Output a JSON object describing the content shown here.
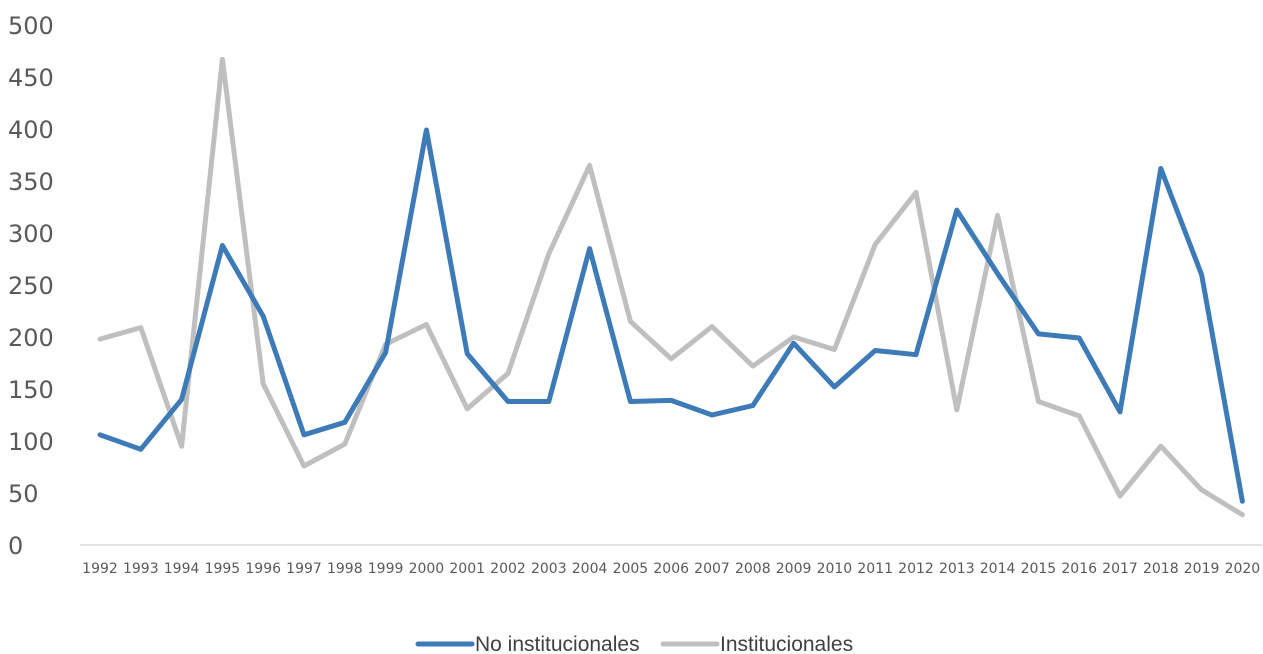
{
  "chart_data": {
    "type": "line",
    "title": "",
    "xlabel": "",
    "ylabel": "",
    "categories": [
      "1992",
      "1993",
      "1994",
      "1995",
      "1996",
      "1997",
      "1998",
      "1999",
      "2000",
      "2001",
      "2002",
      "2003",
      "2004",
      "2005",
      "2006",
      "2007",
      "2008",
      "2009",
      "2010",
      "2011",
      "2012",
      "2013",
      "2014",
      "2015",
      "2016",
      "2017",
      "2018",
      "2019",
      "2020"
    ],
    "y_ticks": [
      "0",
      "50",
      "100",
      "150",
      "200",
      "250",
      "300",
      "350",
      "400",
      "450",
      "500"
    ],
    "ylim": [
      0,
      500
    ],
    "grid": false,
    "legend_position": "bottom",
    "series": [
      {
        "name": "No institucionales",
        "color": "#3d7ab8",
        "values": [
          106,
          92,
          140,
          288,
          220,
          106,
          118,
          185,
          399,
          184,
          138,
          138,
          285,
          138,
          139,
          125,
          134,
          194,
          152,
          187,
          183,
          322,
          261,
          203,
          199,
          128,
          362,
          260,
          42
        ]
      },
      {
        "name": "Institucionales",
        "color": "#bfbfbf",
        "values": [
          198,
          209,
          95,
          467,
          155,
          76,
          97,
          193,
          212,
          131,
          165,
          280,
          365,
          215,
          179,
          210,
          172,
          200,
          188,
          289,
          339,
          130,
          317,
          138,
          124,
          47,
          95,
          53,
          29
        ]
      }
    ]
  }
}
